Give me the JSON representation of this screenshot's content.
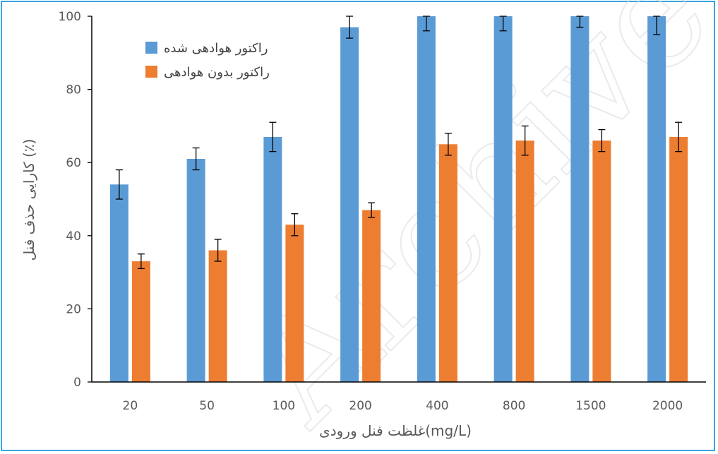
{
  "chart_data": {
    "type": "bar",
    "categories": [
      "20",
      "50",
      "100",
      "200",
      "400",
      "800",
      "1500",
      "2000"
    ],
    "series": [
      {
        "name": "راکتور هوادهی شده",
        "color": "#5b9bd5",
        "values": [
          54,
          61,
          67,
          97,
          100,
          100,
          100,
          100
        ],
        "errors": [
          4,
          3,
          4,
          3,
          4,
          4,
          3,
          5
        ]
      },
      {
        "name": "راکتور بدون هوادهی",
        "color": "#ed7d31",
        "values": [
          33,
          36,
          43,
          47,
          65,
          66,
          66,
          67
        ],
        "errors": [
          2,
          3,
          3,
          2,
          3,
          4,
          3,
          4
        ]
      }
    ],
    "xlabel": "غلظت فنل ورودی(mg/L)",
    "ylabel": "کارایی حذف فنل (٪)",
    "ylim": [
      0,
      100
    ],
    "yticks": [
      "0",
      "20",
      "40",
      "60",
      "80",
      "100"
    ],
    "grid": false,
    "legend_position": "top-left"
  },
  "watermark": "Archive of SID",
  "frame_color": "#3aa6dd"
}
